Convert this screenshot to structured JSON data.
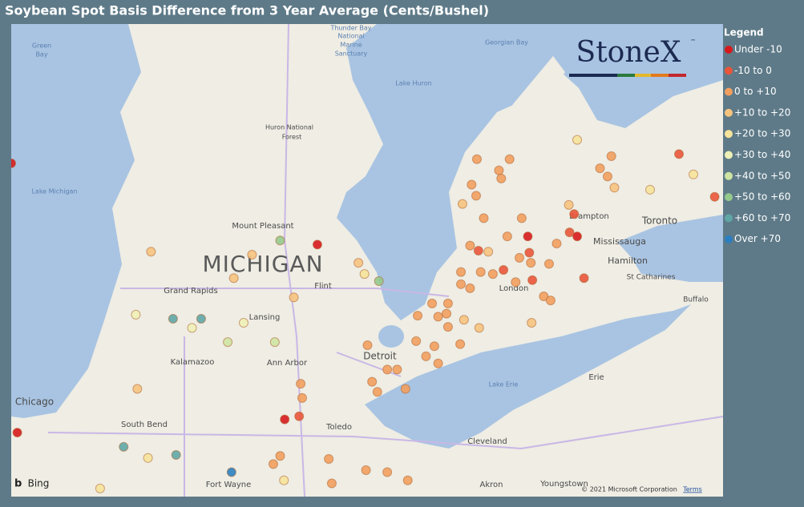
{
  "header": {
    "title": "Soybean Spot Basis Difference from 3 Year Average (Cents/Bushel)"
  },
  "logo": {
    "brand": "StoneX",
    "tm": "™"
  },
  "legend": {
    "title": "Legend",
    "items": [
      {
        "label": "Under -10",
        "color": "#d7191c"
      },
      {
        "label": "-10 to 0",
        "color": "#e9553a"
      },
      {
        "label": "0 to +10",
        "color": "#f29e5e"
      },
      {
        "label": "+10 to +20",
        "color": "#f6c37f"
      },
      {
        "label": "+20 to +30",
        "color": "#f6e39a"
      },
      {
        "label": "+30 to +40",
        "color": "#eef0b6"
      },
      {
        "label": "+40 to +50",
        "color": "#cfe4a2"
      },
      {
        "label": "+50 to +60",
        "color": "#95c98c"
      },
      {
        "label": "+60 to +70",
        "color": "#5fa6a5"
      },
      {
        "label": "Over +70",
        "color": "#2b7fc0"
      }
    ]
  },
  "map": {
    "lon_range": [
      -87.67,
      -78.3
    ],
    "lat_range": [
      45.58,
      40.93
    ],
    "labels": [
      "Green",
      "Bay",
      "Thunder Bay",
      "National",
      "Marine",
      "Sanctuary",
      "Georgian Bay",
      "Lake Huron",
      "Huron National",
      "Forest",
      "Lake Michigan",
      "Mount Pleasant",
      "MICHIGAN",
      "Grand Rapids",
      "Flint",
      "Lansing",
      "Kalamazoo",
      "Ann Arbor",
      "Detroit",
      "Chicago",
      "South Bend",
      "Toledo",
      "Cleveland",
      "Lake Erie",
      "Erie",
      "Brampton",
      "Toronto",
      "Mississauga",
      "Hamilton",
      "St Catharines",
      "Buffalo",
      "London",
      "Fort Wayne",
      "Akron",
      "Youngstown",
      "Bing",
      "© 2021 Microsoft Corporation",
      "Terms"
    ],
    "points": [
      {
        "lon": -87.67,
        "lat": 44.21,
        "bin": 0
      },
      {
        "lon": -83.64,
        "lat": 43.41,
        "bin": 0
      },
      {
        "lon": -84.13,
        "lat": 43.45,
        "bin": 7
      },
      {
        "lon": -85.83,
        "lat": 43.34,
        "bin": 3
      },
      {
        "lon": -84.74,
        "lat": 43.08,
        "bin": 3
      },
      {
        "lon": -84.5,
        "lat": 43.31,
        "bin": 3
      },
      {
        "lon": -83.1,
        "lat": 43.23,
        "bin": 3
      },
      {
        "lon": -83.02,
        "lat": 43.12,
        "bin": 4
      },
      {
        "lon": -82.83,
        "lat": 43.05,
        "bin": 7
      },
      {
        "lon": -83.95,
        "lat": 42.89,
        "bin": 3
      },
      {
        "lon": -84.61,
        "lat": 42.64,
        "bin": 5
      },
      {
        "lon": -85.54,
        "lat": 42.68,
        "bin": 8
      },
      {
        "lon": -85.17,
        "lat": 42.68,
        "bin": 8
      },
      {
        "lon": -86.03,
        "lat": 42.72,
        "bin": 5
      },
      {
        "lon": -84.82,
        "lat": 42.45,
        "bin": 6
      },
      {
        "lon": -84.2,
        "lat": 42.45,
        "bin": 6
      },
      {
        "lon": -85.29,
        "lat": 42.59,
        "bin": 5
      },
      {
        "lon": -83.86,
        "lat": 42.04,
        "bin": 2
      },
      {
        "lon": -83.84,
        "lat": 41.9,
        "bin": 2
      },
      {
        "lon": -83.88,
        "lat": 41.72,
        "bin": 1
      },
      {
        "lon": -84.07,
        "lat": 41.69,
        "bin": 0
      },
      {
        "lon": -87.59,
        "lat": 41.56,
        "bin": 0
      },
      {
        "lon": -86.01,
        "lat": 41.99,
        "bin": 3
      },
      {
        "lon": -86.19,
        "lat": 41.42,
        "bin": 8
      },
      {
        "lon": -85.87,
        "lat": 41.31,
        "bin": 4
      },
      {
        "lon": -85.5,
        "lat": 41.34,
        "bin": 8
      },
      {
        "lon": -84.77,
        "lat": 41.17,
        "bin": 9
      },
      {
        "lon": -84.22,
        "lat": 41.25,
        "bin": 2
      },
      {
        "lon": -84.13,
        "lat": 41.33,
        "bin": 2
      },
      {
        "lon": -84.08,
        "lat": 41.09,
        "bin": 4
      },
      {
        "lon": -83.49,
        "lat": 41.3,
        "bin": 2
      },
      {
        "lon": -83.0,
        "lat": 41.19,
        "bin": 2
      },
      {
        "lon": -82.72,
        "lat": 41.17,
        "bin": 2
      },
      {
        "lon": -83.45,
        "lat": 41.06,
        "bin": 2
      },
      {
        "lon": -82.45,
        "lat": 41.09,
        "bin": 2
      },
      {
        "lon": -86.5,
        "lat": 41.01,
        "bin": 4
      },
      {
        "lon": -81.54,
        "lat": 44.25,
        "bin": 2
      },
      {
        "lon": -81.25,
        "lat": 44.14,
        "bin": 2
      },
      {
        "lon": -81.11,
        "lat": 44.25,
        "bin": 2
      },
      {
        "lon": -81.22,
        "lat": 44.06,
        "bin": 2
      },
      {
        "lon": -81.61,
        "lat": 44.0,
        "bin": 2
      },
      {
        "lon": -81.55,
        "lat": 43.89,
        "bin": 2
      },
      {
        "lon": -81.73,
        "lat": 43.81,
        "bin": 3
      },
      {
        "lon": -81.45,
        "lat": 43.67,
        "bin": 2
      },
      {
        "lon": -80.95,
        "lat": 43.67,
        "bin": 2
      },
      {
        "lon": -81.63,
        "lat": 43.4,
        "bin": 2
      },
      {
        "lon": -81.52,
        "lat": 43.35,
        "bin": 1
      },
      {
        "lon": -81.39,
        "lat": 43.34,
        "bin": 3
      },
      {
        "lon": -81.14,
        "lat": 43.49,
        "bin": 2
      },
      {
        "lon": -80.87,
        "lat": 43.49,
        "bin": 0
      },
      {
        "lon": -80.98,
        "lat": 43.28,
        "bin": 2
      },
      {
        "lon": -80.85,
        "lat": 43.33,
        "bin": 1
      },
      {
        "lon": -80.83,
        "lat": 43.23,
        "bin": 2
      },
      {
        "lon": -81.19,
        "lat": 43.16,
        "bin": 1
      },
      {
        "lon": -81.33,
        "lat": 43.12,
        "bin": 2
      },
      {
        "lon": -81.75,
        "lat": 43.14,
        "bin": 2
      },
      {
        "lon": -81.75,
        "lat": 43.02,
        "bin": 2
      },
      {
        "lon": -81.63,
        "lat": 42.98,
        "bin": 2
      },
      {
        "lon": -81.49,
        "lat": 43.14,
        "bin": 2
      },
      {
        "lon": -81.03,
        "lat": 43.04,
        "bin": 2
      },
      {
        "lon": -80.81,
        "lat": 43.06,
        "bin": 1
      },
      {
        "lon": -80.59,
        "lat": 43.22,
        "bin": 2
      },
      {
        "lon": -80.49,
        "lat": 43.42,
        "bin": 2
      },
      {
        "lon": -80.32,
        "lat": 43.53,
        "bin": 1
      },
      {
        "lon": -80.22,
        "lat": 43.49,
        "bin": 0
      },
      {
        "lon": -80.26,
        "lat": 43.71,
        "bin": 1
      },
      {
        "lon": -80.33,
        "lat": 43.8,
        "bin": 3
      },
      {
        "lon": -80.22,
        "lat": 44.44,
        "bin": 4
      },
      {
        "lon": -79.92,
        "lat": 44.16,
        "bin": 2
      },
      {
        "lon": -79.82,
        "lat": 44.08,
        "bin": 2
      },
      {
        "lon": -79.73,
        "lat": 43.97,
        "bin": 3
      },
      {
        "lon": -79.77,
        "lat": 44.28,
        "bin": 2
      },
      {
        "lon": -79.26,
        "lat": 43.95,
        "bin": 4
      },
      {
        "lon": -78.88,
        "lat": 44.3,
        "bin": 1
      },
      {
        "lon": -78.69,
        "lat": 44.1,
        "bin": 4
      },
      {
        "lon": -78.41,
        "lat": 43.88,
        "bin": 1
      },
      {
        "lon": -80.13,
        "lat": 43.08,
        "bin": 1
      },
      {
        "lon": -80.66,
        "lat": 42.9,
        "bin": 2
      },
      {
        "lon": -80.57,
        "lat": 42.86,
        "bin": 2
      },
      {
        "lon": -80.82,
        "lat": 42.64,
        "bin": 3
      },
      {
        "lon": -82.13,
        "lat": 42.83,
        "bin": 2
      },
      {
        "lon": -81.92,
        "lat": 42.83,
        "bin": 2
      },
      {
        "lon": -82.32,
        "lat": 42.71,
        "bin": 2
      },
      {
        "lon": -82.05,
        "lat": 42.7,
        "bin": 2
      },
      {
        "lon": -81.94,
        "lat": 42.73,
        "bin": 2
      },
      {
        "lon": -81.71,
        "lat": 42.67,
        "bin": 3
      },
      {
        "lon": -81.51,
        "lat": 42.59,
        "bin": 3
      },
      {
        "lon": -81.92,
        "lat": 42.6,
        "bin": 2
      },
      {
        "lon": -82.1,
        "lat": 42.41,
        "bin": 2
      },
      {
        "lon": -82.21,
        "lat": 42.31,
        "bin": 2
      },
      {
        "lon": -82.05,
        "lat": 42.24,
        "bin": 2
      },
      {
        "lon": -81.76,
        "lat": 42.43,
        "bin": 2
      },
      {
        "lon": -82.34,
        "lat": 42.46,
        "bin": 2
      },
      {
        "lon": -82.72,
        "lat": 42.18,
        "bin": 2
      },
      {
        "lon": -82.59,
        "lat": 42.18,
        "bin": 2
      },
      {
        "lon": -82.92,
        "lat": 42.06,
        "bin": 2
      },
      {
        "lon": -82.85,
        "lat": 41.96,
        "bin": 2
      },
      {
        "lon": -82.48,
        "lat": 41.99,
        "bin": 2
      },
      {
        "lon": -82.98,
        "lat": 42.42,
        "bin": 2
      }
    ]
  }
}
